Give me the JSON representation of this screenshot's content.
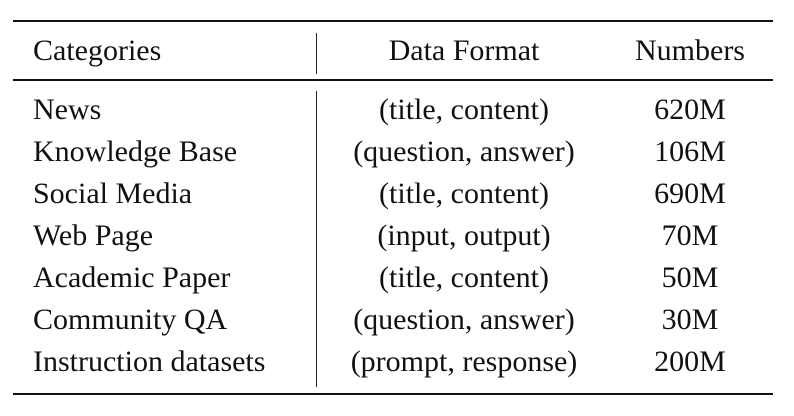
{
  "table": {
    "headers": {
      "category": "Categories",
      "format": "Data Format",
      "numbers": "Numbers"
    },
    "rows": [
      {
        "category": "News",
        "format": "(title, content)",
        "numbers": "620M"
      },
      {
        "category": "Knowledge Base",
        "format": "(question, answer)",
        "numbers": "106M"
      },
      {
        "category": "Social Media",
        "format": "(title, content)",
        "numbers": "690M"
      },
      {
        "category": "Web Page",
        "format": "(input, output)",
        "numbers": "70M"
      },
      {
        "category": "Academic Paper",
        "format": "(title, content)",
        "numbers": "50M"
      },
      {
        "category": "Community QA",
        "format": "(question, answer)",
        "numbers": "30M"
      },
      {
        "category": "Instruction datasets",
        "format": "(prompt, response)",
        "numbers": "200M"
      }
    ]
  }
}
